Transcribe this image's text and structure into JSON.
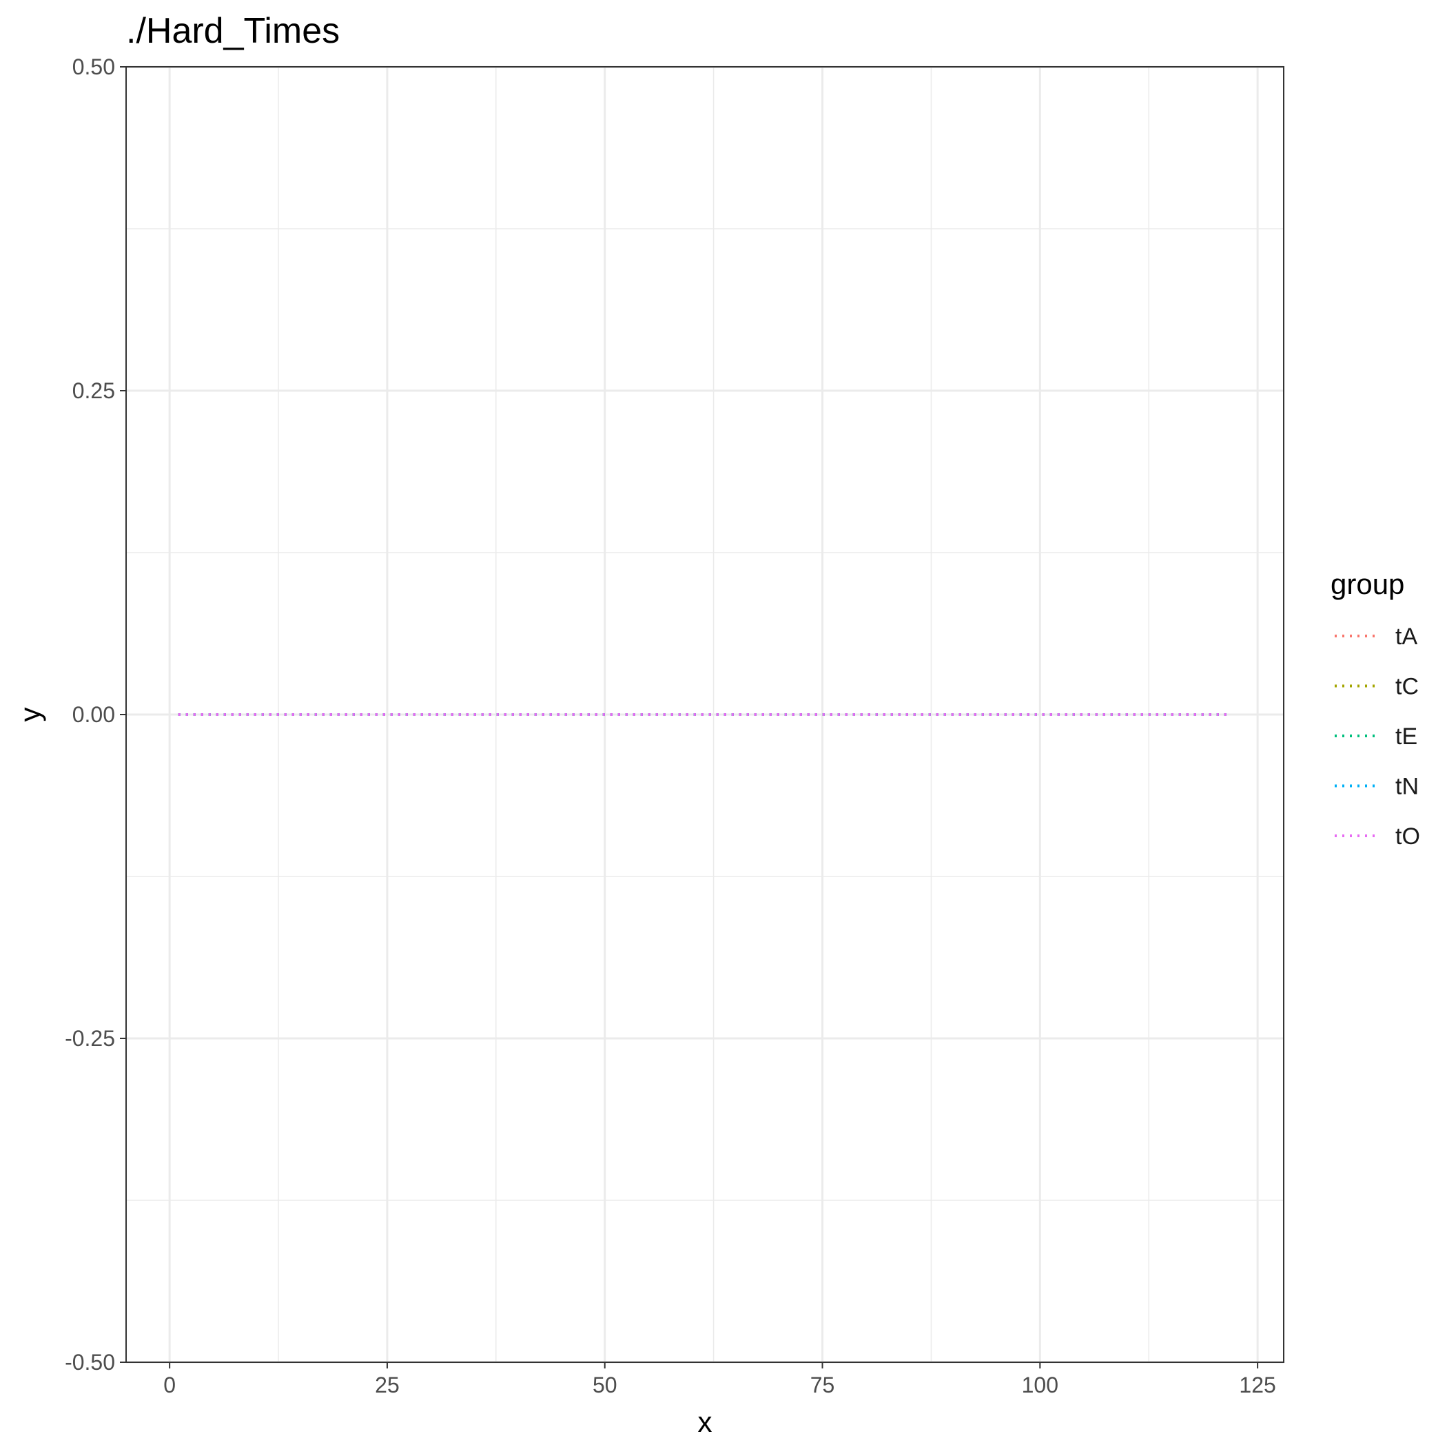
{
  "chart_data": {
    "type": "line",
    "title": "./Hard_Times",
    "xlabel": "x",
    "ylabel": "y",
    "xlim": [
      -5,
      128
    ],
    "ylim": [
      -0.5,
      0.5
    ],
    "x_ticks": [
      0,
      25,
      50,
      75,
      100,
      125
    ],
    "x_tick_labels": [
      "0",
      "25",
      "50",
      "75",
      "100",
      "125"
    ],
    "x_minor_ticks": [
      12.5,
      37.5,
      62.5,
      87.5,
      112.5
    ],
    "y_ticks": [
      -0.5,
      -0.25,
      0,
      0.25,
      0.5
    ],
    "y_tick_labels": [
      "-0.50",
      "-0.25",
      "0.00",
      "0.25",
      "0.50"
    ],
    "y_minor_ticks": [
      -0.375,
      -0.125,
      0.125,
      0.375
    ],
    "grid": true,
    "line_style": "dotted",
    "legend": {
      "title": "group",
      "placement": "right"
    },
    "x": [
      1,
      122
    ],
    "series": [
      {
        "name": "tA",
        "color": "#F8766D",
        "values": [
          0,
          0
        ]
      },
      {
        "name": "tC",
        "color": "#A3A500",
        "values": [
          0,
          0
        ]
      },
      {
        "name": "tE",
        "color": "#00BF7D",
        "values": [
          0,
          0
        ]
      },
      {
        "name": "tN",
        "color": "#00B0F6",
        "values": [
          0,
          0
        ]
      },
      {
        "name": "tO",
        "color": "#E76BF3",
        "values": [
          0,
          0
        ]
      }
    ]
  }
}
